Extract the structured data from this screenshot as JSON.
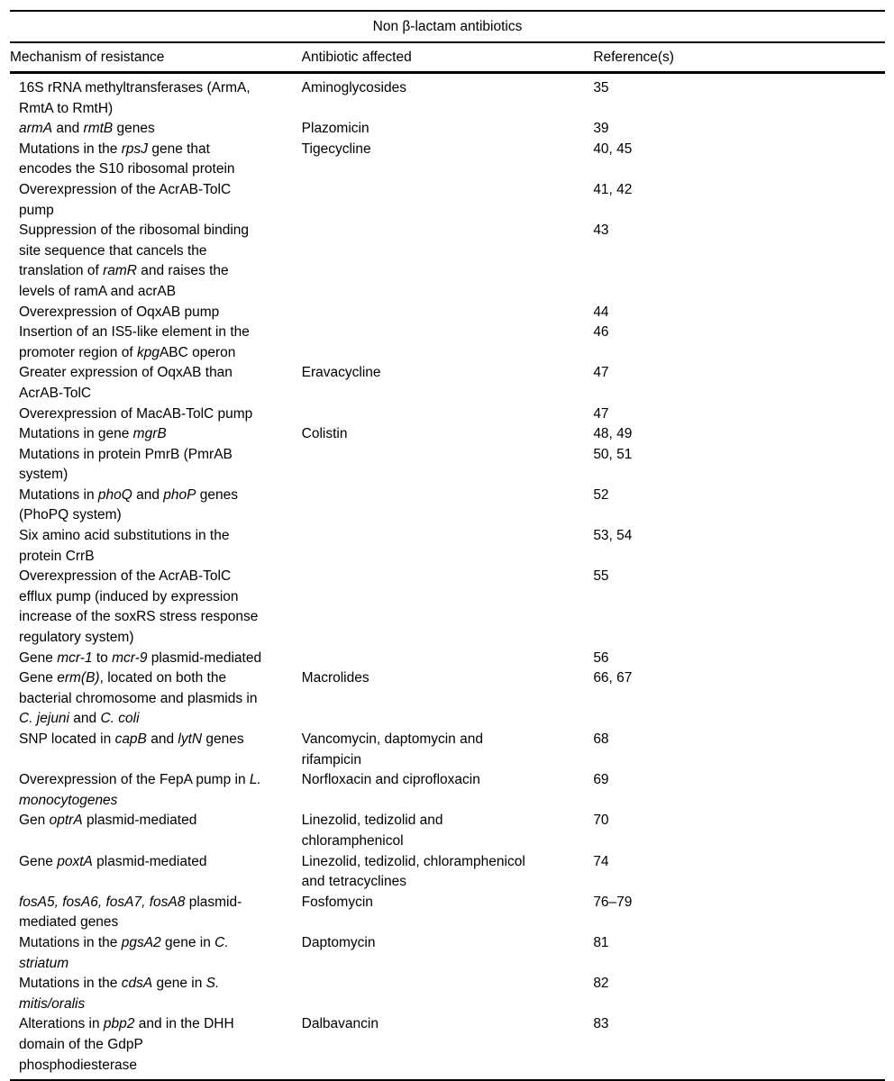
{
  "colors": {
    "text": "#000000",
    "background": "#ffffff",
    "rule": "#000000"
  },
  "table": {
    "title": "Non β-lactam antibiotics",
    "columns": [
      "Mechanism of resistance",
      "Antibiotic affected",
      "Reference(s)"
    ],
    "rows": [
      {
        "mechanism": [
          {
            "text": "16S rRNA methyltransferases (ArmA, RmtA to RmtH)",
            "italic": false
          }
        ],
        "antibiotic": "Aminoglycosides",
        "references": "35"
      },
      {
        "mechanism": [
          {
            "text": "armA",
            "italic": true
          },
          {
            "text": " and ",
            "italic": false
          },
          {
            "text": "rmtB",
            "italic": true
          },
          {
            "text": " genes",
            "italic": false
          }
        ],
        "antibiotic": "Plazomicin",
        "references": "39"
      },
      {
        "mechanism": [
          {
            "text": "Mutations in the ",
            "italic": false
          },
          {
            "text": "rpsJ",
            "italic": true
          },
          {
            "text": " gene that encodes the S10 ribosomal protein",
            "italic": false
          }
        ],
        "antibiotic": "Tigecycline",
        "references": "40, 45"
      },
      {
        "mechanism": [
          {
            "text": "Overexpression of the AcrAB-TolC pump",
            "italic": false
          }
        ],
        "antibiotic": "",
        "references": "41, 42"
      },
      {
        "mechanism": [
          {
            "text": "Suppression of the ribosomal binding site sequence that cancels the translation of ",
            "italic": false
          },
          {
            "text": "ramR",
            "italic": true
          },
          {
            "text": " and raises the levels of ramA and acrAB",
            "italic": false
          }
        ],
        "antibiotic": "",
        "references": "43"
      },
      {
        "mechanism": [
          {
            "text": "Overexpression of OqxAB pump",
            "italic": false
          }
        ],
        "antibiotic": "",
        "references": "44"
      },
      {
        "mechanism": [
          {
            "text": "Insertion of an IS5-like element in the promoter region of ",
            "italic": false
          },
          {
            "text": "kpg",
            "italic": true
          },
          {
            "text": "ABC operon",
            "italic": false
          }
        ],
        "antibiotic": "",
        "references": "46"
      },
      {
        "mechanism": [
          {
            "text": "Greater expression of OqxAB than AcrAB-TolC",
            "italic": false
          }
        ],
        "antibiotic": "Eravacycline",
        "references": "47"
      },
      {
        "mechanism": [
          {
            "text": "Overexpression of MacAB-TolC pump",
            "italic": false
          }
        ],
        "antibiotic": "",
        "references": "47"
      },
      {
        "mechanism": [
          {
            "text": "Mutations in gene ",
            "italic": false
          },
          {
            "text": "mgrB",
            "italic": true
          }
        ],
        "antibiotic": "Colistin",
        "references": "48, 49"
      },
      {
        "mechanism": [
          {
            "text": "Mutations in protein PmrB (PmrAB system)",
            "italic": false
          }
        ],
        "antibiotic": "",
        "references": "50, 51"
      },
      {
        "mechanism": [
          {
            "text": "Mutations in ",
            "italic": false
          },
          {
            "text": "phoQ",
            "italic": true
          },
          {
            "text": " and ",
            "italic": false
          },
          {
            "text": "phoP",
            "italic": true
          },
          {
            "text": " genes (PhoPQ system)",
            "italic": false
          }
        ],
        "antibiotic": "",
        "references": "52"
      },
      {
        "mechanism": [
          {
            "text": "Six amino acid substitutions in the protein CrrB",
            "italic": false
          }
        ],
        "antibiotic": "",
        "references": "53, 54"
      },
      {
        "mechanism": [
          {
            "text": "Overexpression of the AcrAB-TolC efflux pump (induced by expression increase of the soxRS stress response regulatory system)",
            "italic": false
          }
        ],
        "antibiotic": "",
        "references": "55"
      },
      {
        "mechanism": [
          {
            "text": "Gene ",
            "italic": false
          },
          {
            "text": "mcr-1",
            "italic": true
          },
          {
            "text": " to ",
            "italic": false
          },
          {
            "text": "mcr-9",
            "italic": true
          },
          {
            "text": " plasmid-mediated",
            "italic": false
          }
        ],
        "antibiotic": "",
        "references": "56"
      },
      {
        "mechanism": [
          {
            "text": "Gene ",
            "italic": false
          },
          {
            "text": "erm(B)",
            "italic": true
          },
          {
            "text": ", located on both the bacterial chromosome and plasmids in ",
            "italic": false
          },
          {
            "text": "C. jejuni",
            "italic": true
          },
          {
            "text": " and ",
            "italic": false
          },
          {
            "text": "C. coli",
            "italic": true
          }
        ],
        "antibiotic": "Macrolides",
        "references": "66, 67"
      },
      {
        "mechanism": [
          {
            "text": "SNP located in ",
            "italic": false
          },
          {
            "text": "capB",
            "italic": true
          },
          {
            "text": " and ",
            "italic": false
          },
          {
            "text": "lytN",
            "italic": true
          },
          {
            "text": " genes",
            "italic": false
          }
        ],
        "antibiotic": "Vancomycin, daptomycin and rifampicin",
        "references": "68"
      },
      {
        "mechanism": [
          {
            "text": "Overexpression of the FepA pump in ",
            "italic": false
          },
          {
            "text": "L. monocytogenes",
            "italic": true
          }
        ],
        "antibiotic": "Norfloxacin and ciprofloxacin",
        "references": "69"
      },
      {
        "mechanism": [
          {
            "text": "Gen ",
            "italic": false
          },
          {
            "text": "optrA",
            "italic": true
          },
          {
            "text": " plasmid-mediated",
            "italic": false
          }
        ],
        "antibiotic": "Linezolid, tedizolid and chloramphenicol",
        "references": "70"
      },
      {
        "mechanism": [
          {
            "text": "Gene ",
            "italic": false
          },
          {
            "text": "poxtA",
            "italic": true
          },
          {
            "text": " plasmid-mediated",
            "italic": false
          }
        ],
        "antibiotic": "Linezolid, tedizolid, chloramphenicol and tetracyclines",
        "references": "74"
      },
      {
        "mechanism": [
          {
            "text": "fosA5, fosA6, fosA7, fosA8",
            "italic": true
          },
          {
            "text": " plasmid-mediated genes",
            "italic": false
          }
        ],
        "antibiotic": "Fosfomycin",
        "references": "76–79"
      },
      {
        "mechanism": [
          {
            "text": "Mutations in the ",
            "italic": false
          },
          {
            "text": "pgsA2",
            "italic": true
          },
          {
            "text": " gene in ",
            "italic": false
          },
          {
            "text": "C. striatum",
            "italic": true
          }
        ],
        "antibiotic": "Daptomycin",
        "references": "81"
      },
      {
        "mechanism": [
          {
            "text": "Mutations in the ",
            "italic": false
          },
          {
            "text": "cdsA",
            "italic": true
          },
          {
            "text": " gene in ",
            "italic": false
          },
          {
            "text": "S. mitis/oralis",
            "italic": true
          }
        ],
        "antibiotic": "",
        "references": "82"
      },
      {
        "mechanism": [
          {
            "text": "Alterations in ",
            "italic": false
          },
          {
            "text": "pbp2",
            "italic": true
          },
          {
            "text": " and in the DHH domain of the GdpP phosphodiesterase",
            "italic": false
          }
        ],
        "antibiotic": "Dalbavancin",
        "references": "83"
      }
    ]
  }
}
